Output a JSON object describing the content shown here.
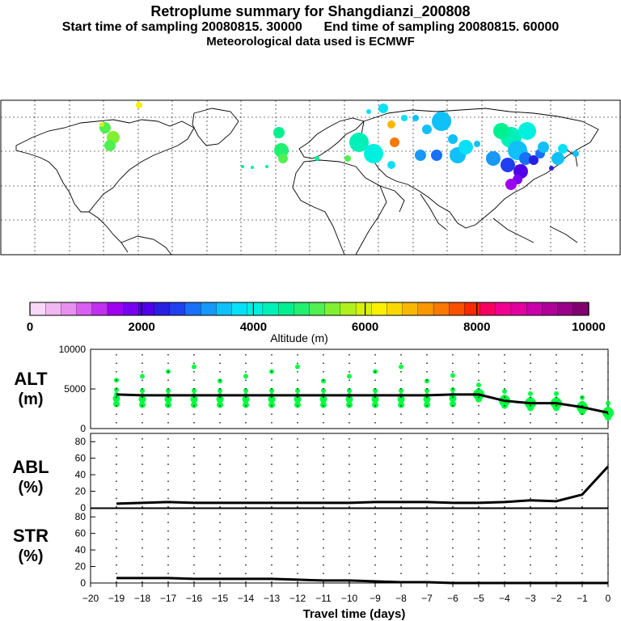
{
  "header": {
    "title": "Retroplume summary for Shangdianzi_200808",
    "line2_start": "Start time of sampling 20080815. 30000",
    "line2_end": "End time of sampling 20080815. 60000",
    "line3": "Meteorological data used is ECMWF"
  },
  "colorbar": {
    "label": "Altitude (m)",
    "ticks": [
      "0",
      "2000",
      "4000",
      "6000",
      "8000",
      "10000"
    ],
    "colors": [
      "#f8d8f8",
      "#f0b8f0",
      "#e890f0",
      "#d860f0",
      "#c030f0",
      "#a000f0",
      "#7800f0",
      "#5000e8",
      "#2820e0",
      "#2040f0",
      "#1870f8",
      "#1898f8",
      "#10c0f8",
      "#08e0f8",
      "#00f0e0",
      "#00f0b8",
      "#00f090",
      "#20f070",
      "#50f050",
      "#80f030",
      "#b0f020",
      "#d8f010",
      "#f8f000",
      "#f8d800",
      "#f8b800",
      "#f89800",
      "#f87800",
      "#f85000",
      "#f82800",
      "#f80060",
      "#f00090",
      "#e000a0",
      "#c800a8",
      "#b00098",
      "#980088",
      "#800070"
    ]
  },
  "map": {
    "description_marker_color": "#00ff40"
  },
  "chart_data": [
    {
      "type": "line",
      "panel": "ALT",
      "ylabel": "ALT (m)",
      "ylabel_line1": "ALT",
      "ylabel_line2": "(m)",
      "ylim": [
        0,
        10000
      ],
      "yticks": [
        "10000",
        "5000",
        "0"
      ],
      "ytick_values": [
        10000,
        5000,
        0
      ],
      "x": [
        -19,
        -18,
        -17,
        -16,
        -15,
        -14,
        -13,
        -12,
        -11,
        -10,
        -9,
        -8,
        -7,
        -6,
        -5,
        -4,
        -3,
        -2,
        -1,
        0
      ],
      "values": [
        4300,
        4200,
        4200,
        4200,
        4200,
        4200,
        4200,
        4200,
        4200,
        4200,
        4200,
        4200,
        4200,
        4300,
        4300,
        3500,
        3200,
        3200,
        2700,
        2000
      ],
      "scatter_color": "#00ff40"
    },
    {
      "type": "line",
      "panel": "ABL",
      "ylabel": "ABL (%)",
      "ylabel_line1": "ABL",
      "ylabel_line2": "(%)",
      "ylim": [
        0,
        90
      ],
      "yticks": [
        "80",
        "60",
        "40",
        "20",
        "0"
      ],
      "ytick_values": [
        80,
        60,
        40,
        20,
        0
      ],
      "x": [
        -19,
        -18,
        -17,
        -16,
        -15,
        -14,
        -13,
        -12,
        -11,
        -10,
        -9,
        -8,
        -7,
        -6,
        -5,
        -4,
        -3,
        -2,
        -1,
        0
      ],
      "values": [
        5,
        6,
        7,
        6,
        6,
        6,
        6,
        6,
        6,
        6,
        7,
        7,
        7,
        6,
        6,
        7,
        9,
        8,
        16,
        50
      ]
    },
    {
      "type": "line",
      "panel": "STR",
      "ylabel": "STR (%)",
      "ylabel_line1": "STR",
      "ylabel_line2": "(%)",
      "ylim": [
        0,
        90
      ],
      "yticks": [
        "80",
        "60",
        "40",
        "20",
        "0"
      ],
      "ytick_values": [
        80,
        60,
        40,
        20,
        0
      ],
      "x": [
        -19,
        -18,
        -17,
        -16,
        -15,
        -14,
        -13,
        -12,
        -11,
        -10,
        -9,
        -8,
        -7,
        -6,
        -5,
        -4,
        -3,
        -2,
        -1,
        0
      ],
      "values": [
        6,
        6,
        6,
        5,
        5,
        5,
        5,
        4,
        3,
        3,
        2,
        1,
        1,
        0,
        0,
        0,
        0,
        0,
        0,
        0
      ]
    }
  ],
  "xaxis": {
    "xlabel": "Travel time (days)",
    "xlim": [
      -20,
      0
    ],
    "tick_labels": [
      "−20",
      "−19",
      "−18",
      "−17",
      "−16",
      "−15",
      "−14",
      "−13",
      "−12",
      "−11",
      "−10",
      "−9",
      "−8",
      "−7",
      "−6",
      "−5",
      "−4",
      "−3",
      "−2",
      "−1",
      "0"
    ]
  }
}
